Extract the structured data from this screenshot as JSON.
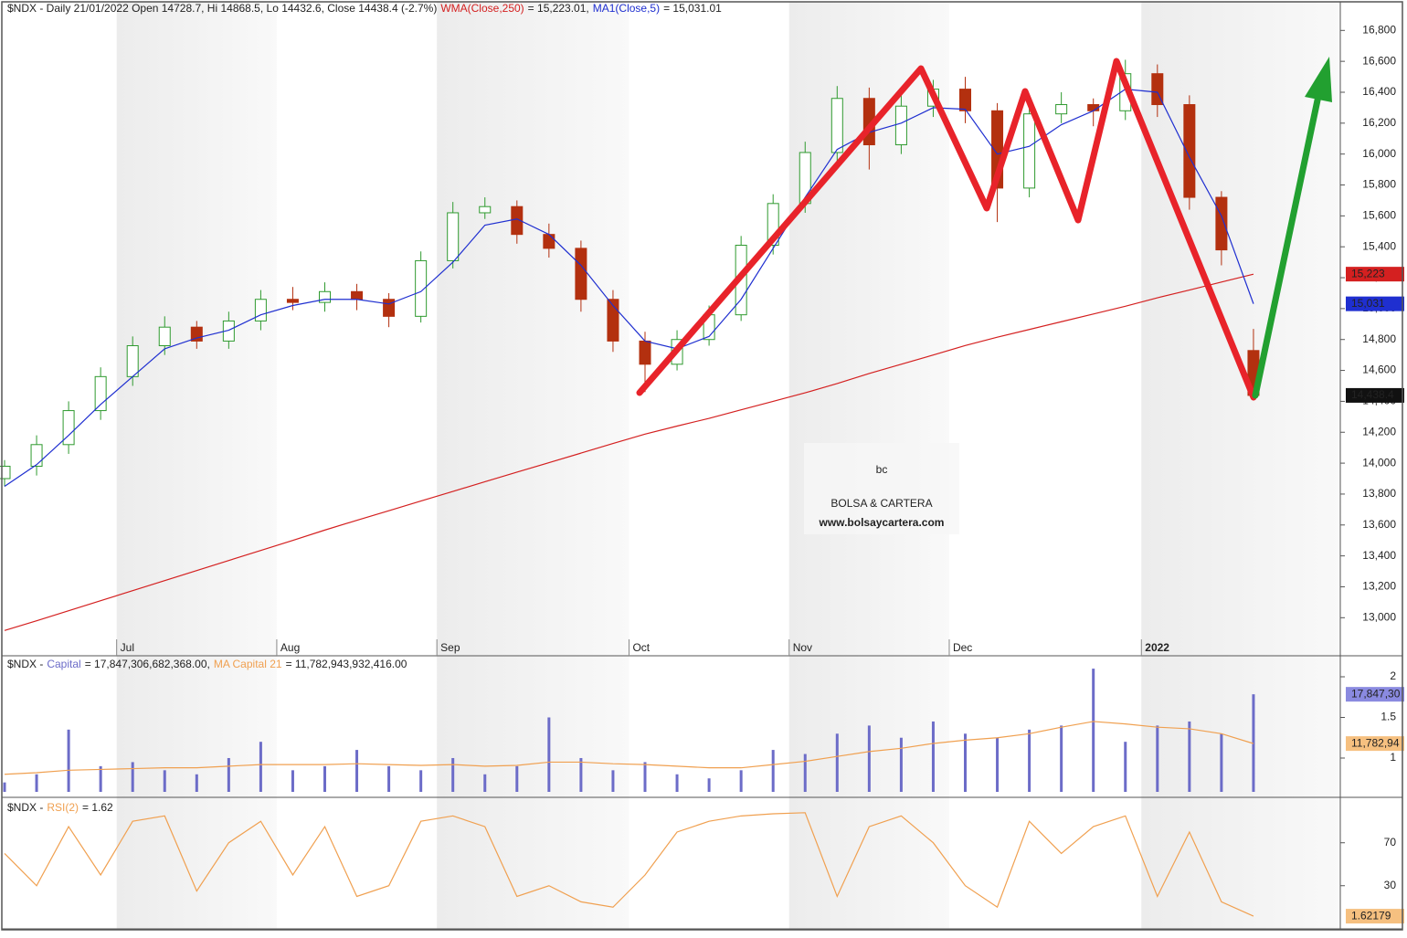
{
  "chart_data": [
    {
      "type": "candlestick",
      "title": "$NDX - Daily 21/01/2022 Open 14728.7, Hi 14868.5, Lo 14432.6, Close 14438.4 (-2.7%)",
      "categories": [
        null,
        null,
        null,
        null,
        "Jul",
        null,
        null,
        null,
        null,
        "Aug",
        null,
        null,
        null,
        null,
        "Sep",
        null,
        null,
        null,
        null,
        null,
        "Oct",
        null,
        null,
        null,
        null,
        "Nov",
        null,
        null,
        null,
        null,
        "Dec",
        null,
        null,
        null,
        null,
        null,
        "2022",
        null,
        null,
        null
      ],
      "open": [
        13900,
        13980,
        14120,
        14340,
        14560,
        14760,
        14880,
        14790,
        14920,
        15060,
        15040,
        15110,
        15060,
        14950,
        15310,
        15620,
        15660,
        15480,
        15390,
        15060,
        14790,
        14640,
        14800,
        14960,
        15410,
        15680,
        16010,
        16360,
        16060,
        16310,
        16420,
        16280,
        15780,
        16260,
        16320,
        16280,
        16520,
        16320,
        15720,
        14728.7
      ],
      "high": [
        14020,
        14180,
        14400,
        14620,
        14820,
        14950,
        14920,
        14980,
        15120,
        15140,
        15170,
        15160,
        15100,
        15370,
        15690,
        15720,
        15700,
        15550,
        15440,
        15120,
        14850,
        14860,
        15020,
        15470,
        15740,
        16080,
        16440,
        16430,
        16380,
        16480,
        16500,
        16330,
        16320,
        16400,
        16360,
        16610,
        16580,
        16380,
        15760,
        14868.5
      ],
      "low": [
        13850,
        13920,
        14060,
        14280,
        14500,
        14700,
        14740,
        14740,
        14860,
        14990,
        14980,
        14990,
        14880,
        14910,
        15260,
        15580,
        15420,
        15330,
        14980,
        14720,
        14460,
        14600,
        14760,
        14920,
        15350,
        15620,
        15950,
        15900,
        16000,
        16240,
        16200,
        15560,
        15720,
        16200,
        16180,
        16220,
        16240,
        15640,
        15280,
        14432.6
      ],
      "close": [
        13980,
        14120,
        14340,
        14560,
        14760,
        14880,
        14790,
        14920,
        15060,
        15040,
        15110,
        15060,
        14950,
        15310,
        15620,
        15660,
        15480,
        15390,
        15060,
        14790,
        14640,
        14800,
        14960,
        15410,
        15680,
        16010,
        16360,
        16060,
        16310,
        16420,
        16280,
        15780,
        16260,
        16320,
        16280,
        16520,
        16320,
        15720,
        15380,
        14438.4
      ],
      "close_label": "14,438.4",
      "up_color": "#2f9a2f",
      "down_color": "#b3300f",
      "series": [
        {
          "name": "WMA(Close,250)",
          "color": "#d42020",
          "value_text": "= 15,223.01,",
          "last_label": "15,223",
          "values": [
            12917,
            12980,
            13045,
            13110,
            13175,
            13240,
            13305,
            13370,
            13435,
            13500,
            13567,
            13630,
            13692,
            13755,
            13817,
            13880,
            13942,
            14003,
            14065,
            14127,
            14188,
            14240,
            14290,
            14345,
            14400,
            14455,
            14515,
            14580,
            14640,
            14700,
            14761,
            14815,
            14865,
            14915,
            14965,
            15015,
            15070,
            15120,
            15172,
            15223.01
          ]
        },
        {
          "name": "MA1(Close,5)",
          "color": "#1f2fd0",
          "value_text": "= 15,031.01",
          "last_label": "15,031",
          "values": [
            13850,
            13990,
            14180,
            14380,
            14560,
            14740,
            14810,
            14860,
            14960,
            15020,
            15060,
            15060,
            15030,
            15110,
            15300,
            15540,
            15580,
            15480,
            15280,
            15020,
            14790,
            14740,
            14820,
            15060,
            15390,
            15720,
            16030,
            16140,
            16200,
            16300,
            16290,
            16000,
            16050,
            16190,
            16280,
            16420,
            16400,
            15980,
            15600,
            15031.01
          ]
        }
      ],
      "ylim": [
        12860,
        16985
      ],
      "yticks": [
        {
          "value": 13000,
          "label": "13,000"
        },
        {
          "value": 13200,
          "label": "13,200"
        },
        {
          "value": 13400,
          "label": "13,400"
        },
        {
          "value": 13600,
          "label": "13,600"
        },
        {
          "value": 13800,
          "label": "13,800"
        },
        {
          "value": 14000,
          "label": "14,000"
        },
        {
          "value": 14200,
          "label": "14,200"
        },
        {
          "value": 14400,
          "label": "14,400"
        },
        {
          "value": 14600,
          "label": "14,600"
        },
        {
          "value": 14800,
          "label": "14,800"
        },
        {
          "value": 15000,
          "label": "15,000"
        },
        {
          "value": 15200,
          "label": "15,200"
        },
        {
          "value": 15400,
          "label": "15,400"
        },
        {
          "value": 15600,
          "label": "15,600"
        },
        {
          "value": 15800,
          "label": "15,800"
        },
        {
          "value": 16000,
          "label": "16,000"
        },
        {
          "value": 16200,
          "label": "16,200"
        },
        {
          "value": 16400,
          "label": "16,400"
        },
        {
          "value": 16600,
          "label": "16,600"
        },
        {
          "value": 16800,
          "label": "16,800"
        }
      ],
      "watermark": {
        "logo": "bc",
        "name": "BOLSA & CARTERA",
        "url": "www.bolsaycartera.com"
      }
    },
    {
      "type": "bar",
      "title": "$NDX -",
      "series": [
        {
          "name": "Capital",
          "color": "#6c6cc8",
          "value_text": "= 17,847,306,682,368.00,",
          "last_label": "17,847,30",
          "values": [
            0.7,
            0.8,
            1.35,
            0.9,
            0.95,
            0.85,
            0.8,
            1.0,
            1.2,
            0.85,
            0.9,
            1.1,
            0.9,
            0.85,
            1.0,
            0.8,
            0.9,
            1.5,
            1.0,
            0.85,
            0.95,
            0.8,
            0.75,
            0.85,
            1.1,
            1.05,
            1.3,
            1.4,
            1.25,
            1.45,
            1.3,
            1.25,
            1.35,
            1.4,
            2.1,
            1.2,
            1.4,
            1.45,
            1.3,
            1.7847306682368
          ]
        },
        {
          "name": "MA Capital 21",
          "color": "#f0a050",
          "value_text": "= 11,782,943,932,416.00",
          "last_label": "11,782,94",
          "values": [
            0.8,
            0.82,
            0.85,
            0.86,
            0.87,
            0.88,
            0.88,
            0.9,
            0.92,
            0.92,
            0.92,
            0.93,
            0.92,
            0.91,
            0.92,
            0.9,
            0.91,
            0.95,
            0.95,
            0.93,
            0.92,
            0.9,
            0.88,
            0.88,
            0.92,
            0.96,
            1.02,
            1.08,
            1.12,
            1.18,
            1.22,
            1.25,
            1.3,
            1.38,
            1.45,
            1.42,
            1.38,
            1.36,
            1.3,
            1.1782943932416
          ]
        }
      ],
      "ylim": [
        0.584,
        2.236
      ],
      "yticks": [
        1,
        1.5,
        2
      ]
    },
    {
      "type": "line",
      "title": "$NDX -",
      "series": [
        {
          "name": "RSI(2)",
          "color": "#f0a050",
          "value_text": "= 1.62",
          "last_label": "1.62179",
          "values": [
            60,
            30,
            85,
            40,
            90,
            95,
            25,
            70,
            90,
            40,
            85,
            20,
            30,
            90,
            95,
            85,
            20,
            30,
            15,
            10,
            40,
            80,
            90,
            95,
            97,
            98,
            20,
            85,
            95,
            70,
            30,
            10,
            90,
            60,
            85,
            95,
            20,
            80,
            15,
            1.62179
          ]
        }
      ],
      "ylim": [
        -8.5,
        108.9
      ],
      "yticks": [
        30,
        70
      ]
    }
  ]
}
